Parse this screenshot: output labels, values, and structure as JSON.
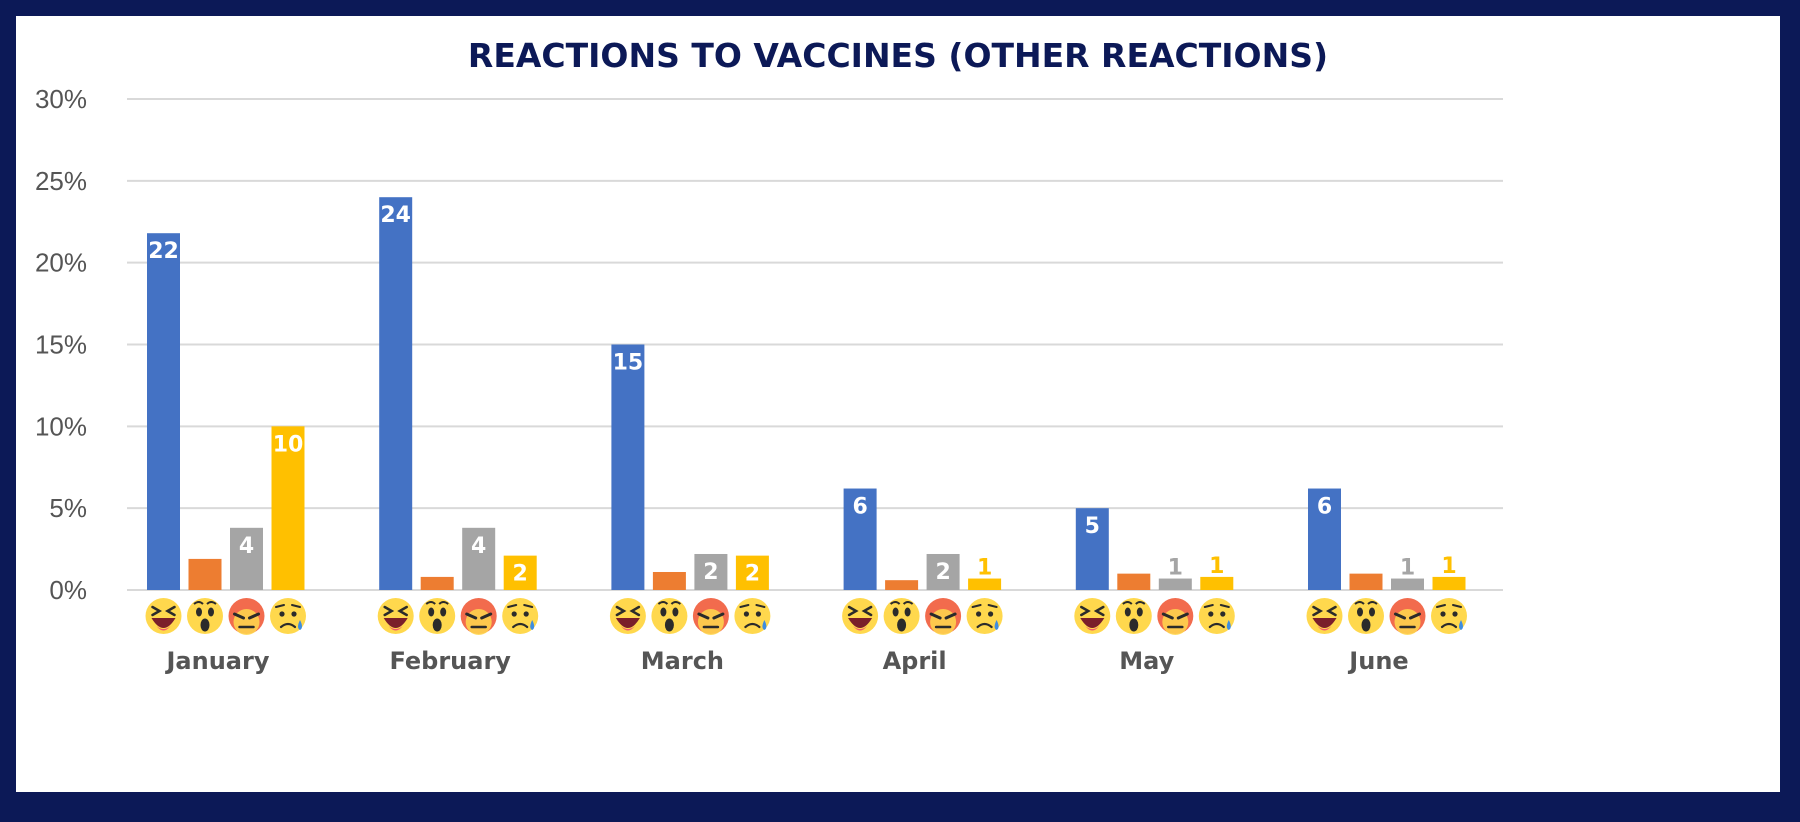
{
  "chart_data": {
    "type": "bar",
    "title": "REACTIONS TO VACCINES (OTHER REACTIONS)",
    "xlabel": "",
    "ylabel": "",
    "ylim": [
      0,
      30
    ],
    "y_ticks": [
      "0%",
      "5%",
      "10%",
      "15%",
      "20%",
      "25%",
      "30%"
    ],
    "y_tick_values": [
      0,
      5,
      10,
      15,
      20,
      25,
      30
    ],
    "grid": true,
    "legend": "none",
    "categories": [
      "January",
      "February",
      "March",
      "April",
      "May",
      "June"
    ],
    "series": [
      {
        "icon": "laughing-emoji-icon",
        "color": "#4472c4",
        "values": [
          21.8,
          24.0,
          15.0,
          6.2,
          5.0,
          6.2
        ],
        "labels": [
          "22",
          "24",
          "15",
          "6",
          "5",
          "6"
        ]
      },
      {
        "icon": "surprised-emoji-icon",
        "color": "#ed7d31",
        "values": [
          1.9,
          0.8,
          1.1,
          0.6,
          1.0,
          1.0
        ],
        "labels": [
          "",
          "",
          "",
          "",
          "",
          ""
        ]
      },
      {
        "icon": "angry-emoji-icon",
        "color": "#a5a5a5",
        "values": [
          3.8,
          3.8,
          2.2,
          2.2,
          0.7,
          0.7
        ],
        "labels": [
          "4",
          "4",
          "2",
          "2",
          "1",
          "1"
        ]
      },
      {
        "icon": "sad-emoji-icon",
        "color": "#ffc000",
        "values": [
          10.0,
          2.1,
          2.1,
          0.7,
          0.8,
          0.8
        ],
        "labels": [
          "10",
          "2",
          "2",
          "1",
          "1",
          "1"
        ]
      }
    ]
  }
}
